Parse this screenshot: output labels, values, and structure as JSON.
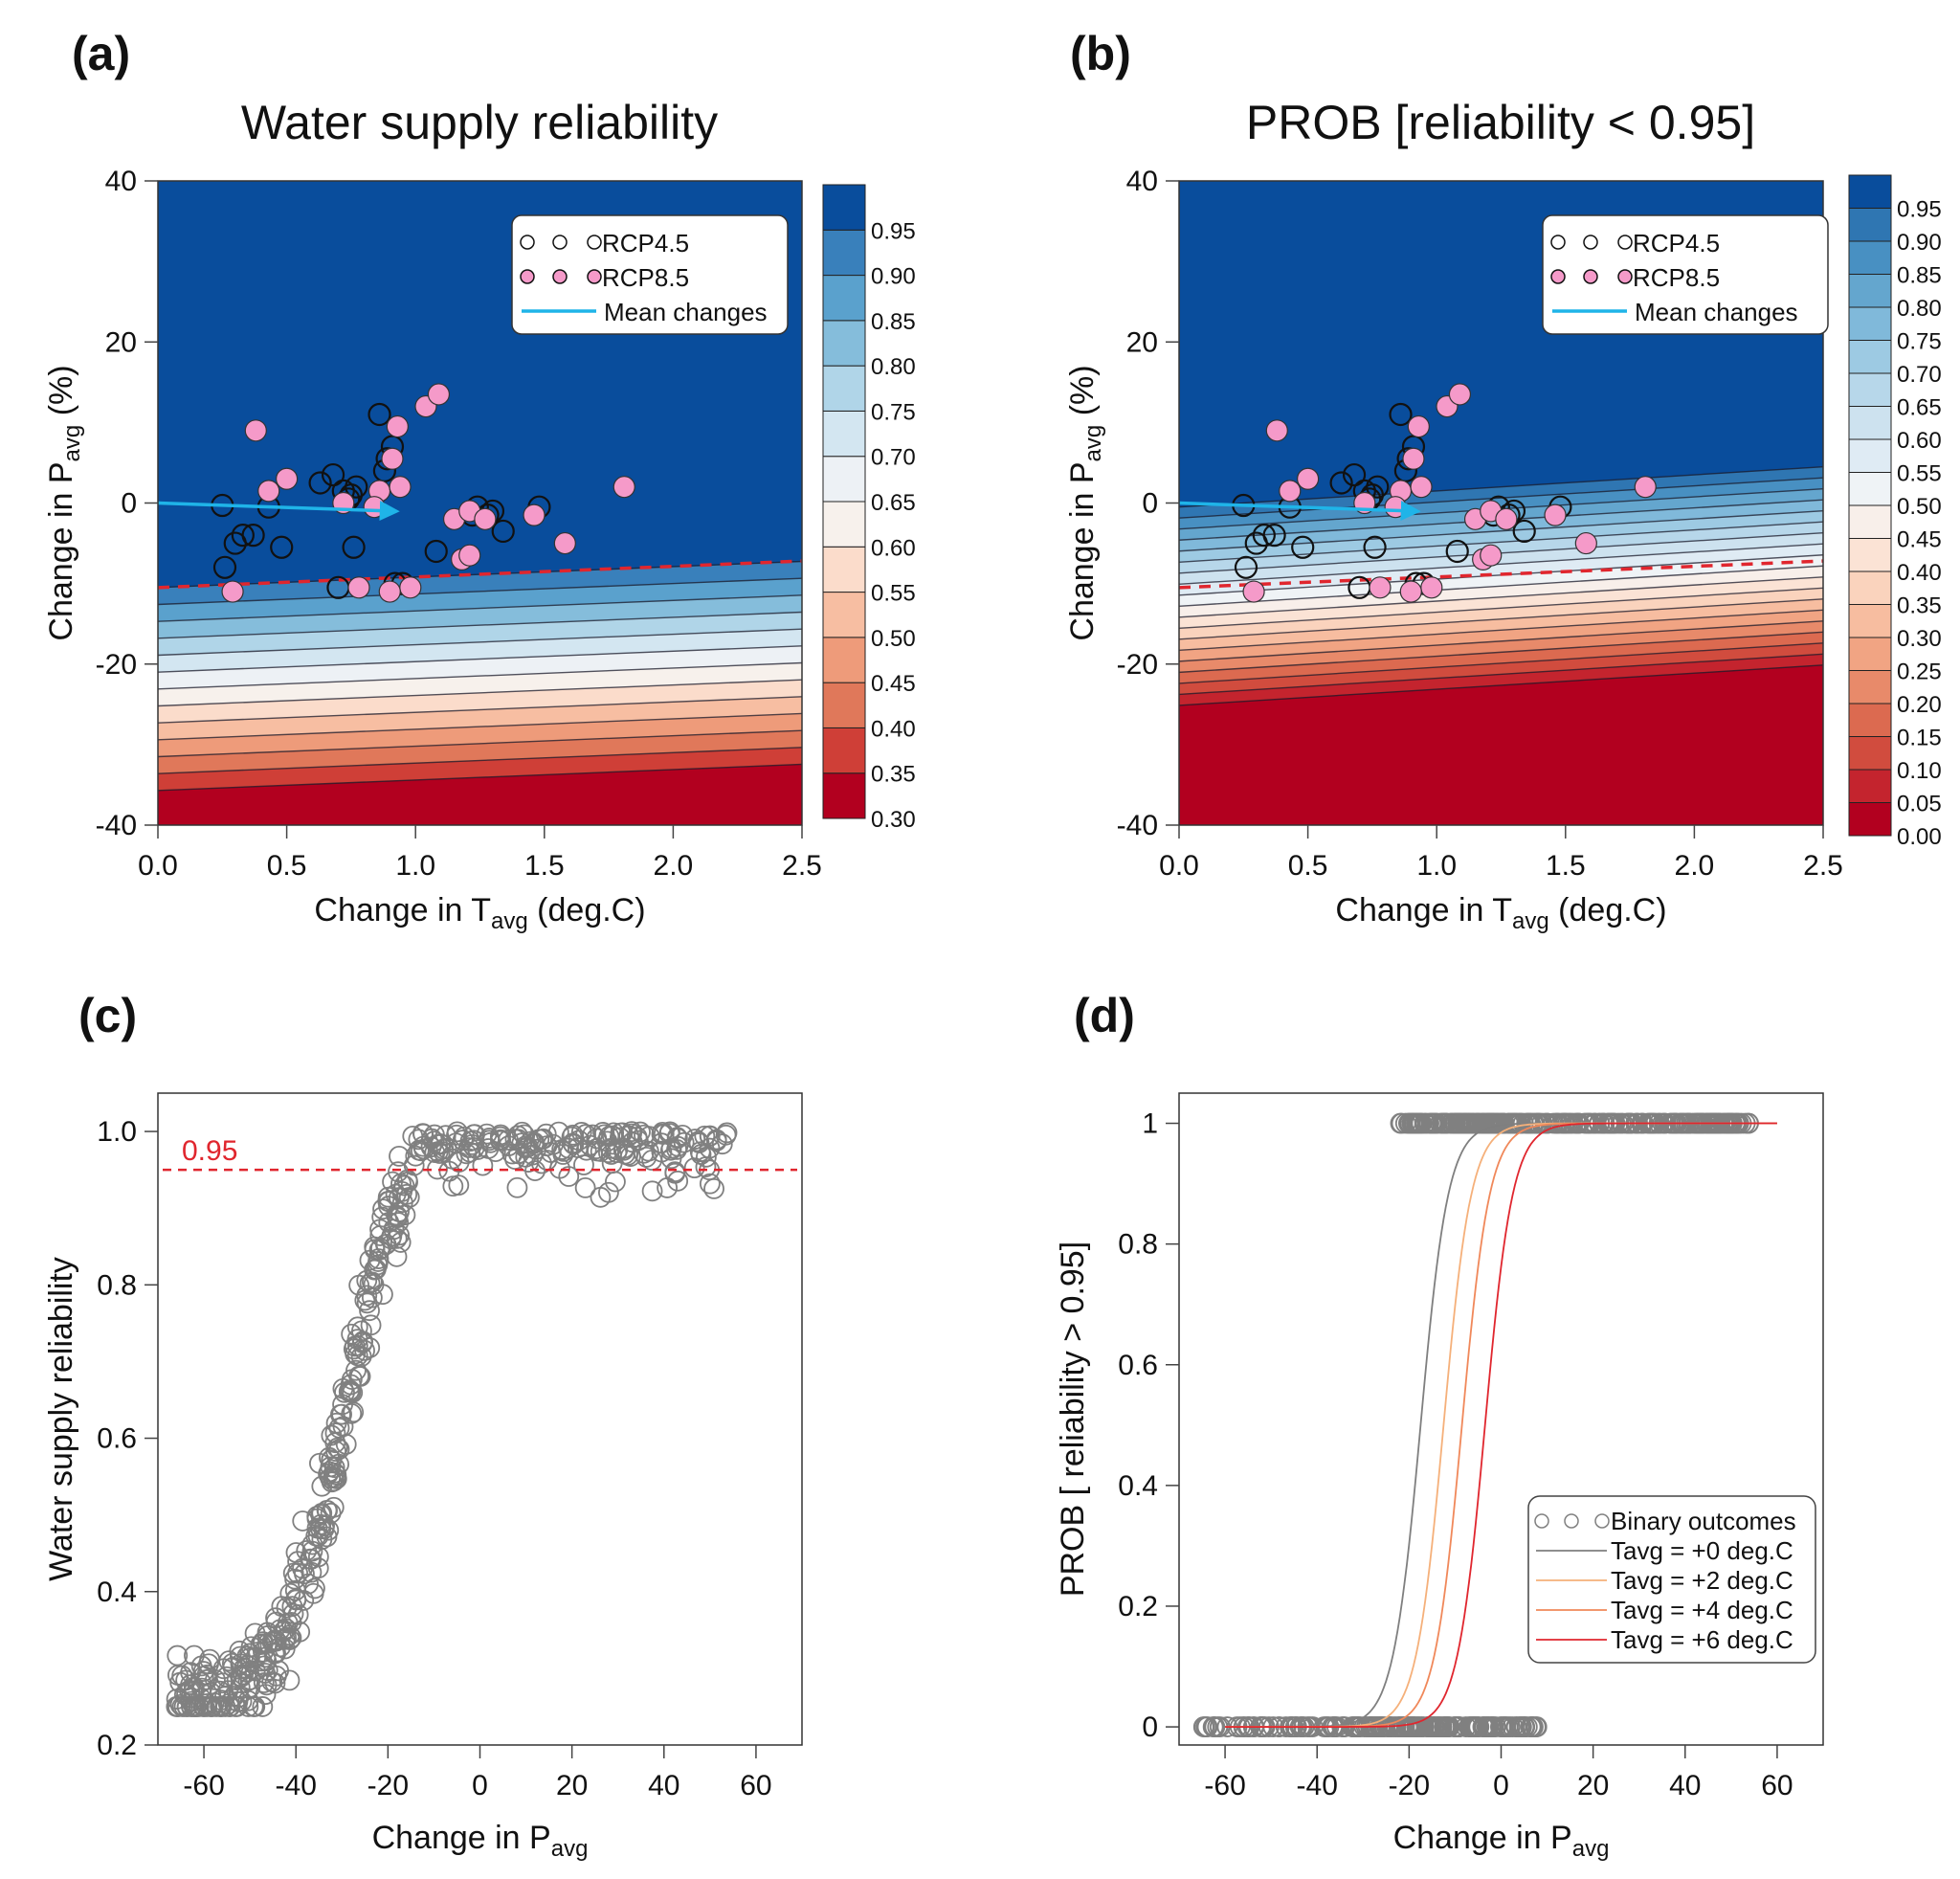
{
  "chart_data": [
    {
      "panel": "(a)",
      "type": "heatmap",
      "title": "Water supply reliability",
      "xlabel": "Change in T",
      "xlabel_sub": "avg",
      "xlabel_suffix": " (deg.C)",
      "ylabel": "Change in P",
      "ylabel_sub": "avg",
      "ylabel_suffix": " (%)",
      "xlim": [
        0,
        2.5
      ],
      "ylim": [
        -40,
        40
      ],
      "xticks": [
        "0.0",
        "0.5",
        "1.0",
        "1.5",
        "2.0",
        "2.5"
      ],
      "yticks": [
        "-40",
        "-20",
        "0",
        "20",
        "40"
      ],
      "colorbar": {
        "levels": [
          0.3,
          0.35,
          0.4,
          0.45,
          0.5,
          0.55,
          0.6,
          0.65,
          0.7,
          0.75,
          0.8,
          0.85,
          0.9,
          0.95,
          1.0
        ],
        "labels": [
          "0.30",
          "0.35",
          "0.40",
          "0.45",
          "0.50",
          "0.55",
          "0.60",
          "0.65",
          "0.70",
          "0.75",
          "0.80",
          "0.85",
          "0.90",
          "0.95"
        ],
        "colors": [
          "#b2001f",
          "#cf3f37",
          "#e0785a",
          "#ee9b7a",
          "#f7bea2",
          "#fbdccb",
          "#f7f1ec",
          "#edf1f5",
          "#d3e6f1",
          "#b0d5e8",
          "#85bddb",
          "#5aa1cd",
          "#3980bb",
          "#094d9c"
        ]
      },
      "threshold_line": {
        "value": 0.95,
        "y_at_x0": -10.5,
        "y_at_x25": -7.2,
        "color": "#e0262e",
        "style": "dashed"
      },
      "contour_model": {
        "slope_per_degC": 1.3,
        "p_at_095_x0": -10.5,
        "step_per_level": 2.1
      },
      "mean_change_arrow": {
        "from": [
          0,
          0
        ],
        "to": [
          0.9,
          -1.0
        ],
        "color": "#1fb4e8"
      },
      "legend": [
        {
          "label": "RCP4.5",
          "marker": "open-circle",
          "color": "#111111"
        },
        {
          "label": "RCP8.5",
          "marker": "filled-circle",
          "color": "#f59ac9"
        },
        {
          "label": "Mean changes",
          "marker": "line",
          "color": "#1fb4e8"
        }
      ],
      "series": [
        {
          "name": "RCP4.5",
          "points": [
            [
              0.25,
              -0.3
            ],
            [
              0.26,
              -8
            ],
            [
              0.3,
              -5
            ],
            [
              0.33,
              -4
            ],
            [
              0.37,
              -4
            ],
            [
              0.43,
              -0.5
            ],
            [
              0.48,
              -5.5
            ],
            [
              0.63,
              2.5
            ],
            [
              0.68,
              3.5
            ],
            [
              0.72,
              1.5
            ],
            [
              0.75,
              1.0
            ],
            [
              0.74,
              0.5
            ],
            [
              0.77,
              2
            ],
            [
              0.7,
              -10.5
            ],
            [
              0.76,
              -5.5
            ],
            [
              0.86,
              11
            ],
            [
              0.89,
              5.5
            ],
            [
              0.91,
              7
            ],
            [
              0.88,
              4
            ],
            [
              0.92,
              -10
            ],
            [
              1.08,
              -6
            ],
            [
              1.22,
              -1.5
            ],
            [
              1.24,
              -0.5
            ],
            [
              1.28,
              -1.5
            ],
            [
              1.3,
              -1
            ],
            [
              1.34,
              -3.5
            ],
            [
              1.48,
              -0.5
            ],
            [
              0.95,
              -10
            ]
          ]
        },
        {
          "name": "RCP8.5",
          "points": [
            [
              0.38,
              9
            ],
            [
              0.43,
              1.5
            ],
            [
              0.5,
              3
            ],
            [
              0.29,
              -11
            ],
            [
              0.72,
              0
            ],
            [
              0.78,
              -10.5
            ],
            [
              0.86,
              1.5
            ],
            [
              0.91,
              5.5
            ],
            [
              0.93,
              9.5
            ],
            [
              0.94,
              2
            ],
            [
              0.98,
              -10.5
            ],
            [
              1.04,
              12
            ],
            [
              1.09,
              13.5
            ],
            [
              1.15,
              -2
            ],
            [
              1.18,
              -7
            ],
            [
              1.21,
              -6.5
            ],
            [
              1.21,
              -1
            ],
            [
              1.27,
              -2
            ],
            [
              1.46,
              -1.5
            ],
            [
              1.58,
              -5
            ],
            [
              1.81,
              2
            ],
            [
              0.9,
              -11
            ],
            [
              0.84,
              -0.5
            ]
          ]
        }
      ]
    },
    {
      "panel": "(b)",
      "type": "heatmap",
      "title": "PROB [reliability < 0.95]",
      "xlabel": "Change in T",
      "xlabel_sub": "avg",
      "xlabel_suffix": " (deg.C)",
      "ylabel": "Change in P",
      "ylabel_sub": "avg",
      "ylabel_suffix": " (%)",
      "xlim": [
        0,
        2.5
      ],
      "ylim": [
        -40,
        40
      ],
      "xticks": [
        "0.0",
        "0.5",
        "1.0",
        "1.5",
        "2.0",
        "2.5"
      ],
      "yticks": [
        "-40",
        "-20",
        "0",
        "20",
        "40"
      ],
      "colorbar": {
        "levels": [
          0.0,
          0.05,
          0.1,
          0.15,
          0.2,
          0.25,
          0.3,
          0.35,
          0.4,
          0.45,
          0.5,
          0.55,
          0.6,
          0.65,
          0.7,
          0.75,
          0.8,
          0.85,
          0.9,
          0.95,
          1.0
        ],
        "labels": [
          "0.00",
          "0.05",
          "0.10",
          "0.15",
          "0.20",
          "0.25",
          "0.30",
          "0.35",
          "0.40",
          "0.45",
          "0.50",
          "0.55",
          "0.60",
          "0.65",
          "0.70",
          "0.75",
          "0.80",
          "0.85",
          "0.90",
          "0.95"
        ],
        "colors": [
          "#b2001f",
          "#c4242e",
          "#d14c3e",
          "#dc6a50",
          "#e88a6a",
          "#f1a483",
          "#f7bda0",
          "#fad3bd",
          "#fbe3d5",
          "#f8efea",
          "#eff3f6",
          "#dfebf4",
          "#cde2ef",
          "#b7d7ea",
          "#9dcae3",
          "#80b9da",
          "#64a6ce",
          "#4890c2",
          "#2f76b2",
          "#094d9c"
        ]
      },
      "threshold_line": {
        "value": 0.95,
        "y_at_x0": -10.5,
        "y_at_x25": -7.2,
        "color": "#e0262e",
        "style": "dashed"
      },
      "contour_model": {
        "p_at_prob0_x0": -26.5,
        "p_at_prob1_x0": -0.5,
        "slope_per_degC": 2.0
      },
      "mean_change_arrow": {
        "from": [
          0,
          0
        ],
        "to": [
          0.9,
          -1.0
        ],
        "color": "#1fb4e8"
      },
      "legend": [
        {
          "label": "RCP4.5",
          "marker": "open-circle",
          "color": "#111111"
        },
        {
          "label": "RCP8.5",
          "marker": "filled-circle",
          "color": "#f59ac9"
        },
        {
          "label": "Mean changes",
          "marker": "line",
          "color": "#1fb4e8"
        }
      ],
      "series_ref": "same points as panel (a)"
    },
    {
      "panel": "(c)",
      "type": "scatter",
      "title": "",
      "xlabel": "Change in P",
      "xlabel_sub": "avg",
      "ylabel": "Water supply reliability",
      "xlim": [
        -70,
        70
      ],
      "ylim": [
        0.2,
        1.05
      ],
      "xticks": [
        "-60",
        "-40",
        "-20",
        "0",
        "20",
        "40",
        "60"
      ],
      "yticks": [
        "0.2",
        "0.4",
        "0.6",
        "0.8",
        "1.0"
      ],
      "threshold": {
        "value": 0.95,
        "label": "0.95",
        "color": "#e0262e"
      },
      "marker_color": "#808080",
      "trend_description": "Reliability rises from ~0.25 at -65% to ~1.0 above about -15%; scattered points between 0.9 and 1.0 from -25% to +45%",
      "n_points_approx": 500
    },
    {
      "panel": "(d)",
      "type": "line",
      "title": "",
      "xlabel": "Change in P",
      "xlabel_sub": "avg",
      "ylabel": "PROB [ reliability  > 0.95]",
      "xlim": [
        -70,
        70
      ],
      "ylim": [
        -0.03,
        1.05
      ],
      "xticks": [
        "-60",
        "-40",
        "-20",
        "0",
        "20",
        "40",
        "60"
      ],
      "yticks": [
        "0",
        "0.2",
        "0.4",
        "0.6",
        "0.8",
        "1"
      ],
      "binary_outcomes": {
        "zero_range": [
          -66,
          8
        ],
        "one_range": [
          -22,
          54
        ],
        "marker_color": "#808080"
      },
      "legend": [
        {
          "label": "Binary outcomes",
          "marker": "open-circle",
          "color": "#808080"
        },
        {
          "label": "Tavg = +0 deg.C",
          "marker": "line",
          "color": "#7f7f7f"
        },
        {
          "label": "Tavg = +2 deg.C",
          "marker": "line",
          "color": "#f5b07a"
        },
        {
          "label": "Tavg = +4 deg.C",
          "marker": "line",
          "color": "#f0885a"
        },
        {
          "label": "Tavg = +6 deg.C",
          "marker": "line",
          "color": "#e0262e"
        }
      ],
      "series": [
        {
          "name": "Tavg = +0 deg.C",
          "midpoint": -17.5,
          "scale": 3.0,
          "x_range": [
            -60,
            60
          ]
        },
        {
          "name": "Tavg = +2 deg.C",
          "midpoint": -12.5,
          "scale": 3.0,
          "x_range": [
            -60,
            60
          ]
        },
        {
          "name": "Tavg = +4 deg.C",
          "midpoint": -8.5,
          "scale": 3.0,
          "x_range": [
            -60,
            60
          ]
        },
        {
          "name": "Tavg = +6 deg.C",
          "midpoint": -3.5,
          "scale": 3.0,
          "x_range": [
            -60,
            60
          ]
        }
      ]
    }
  ]
}
